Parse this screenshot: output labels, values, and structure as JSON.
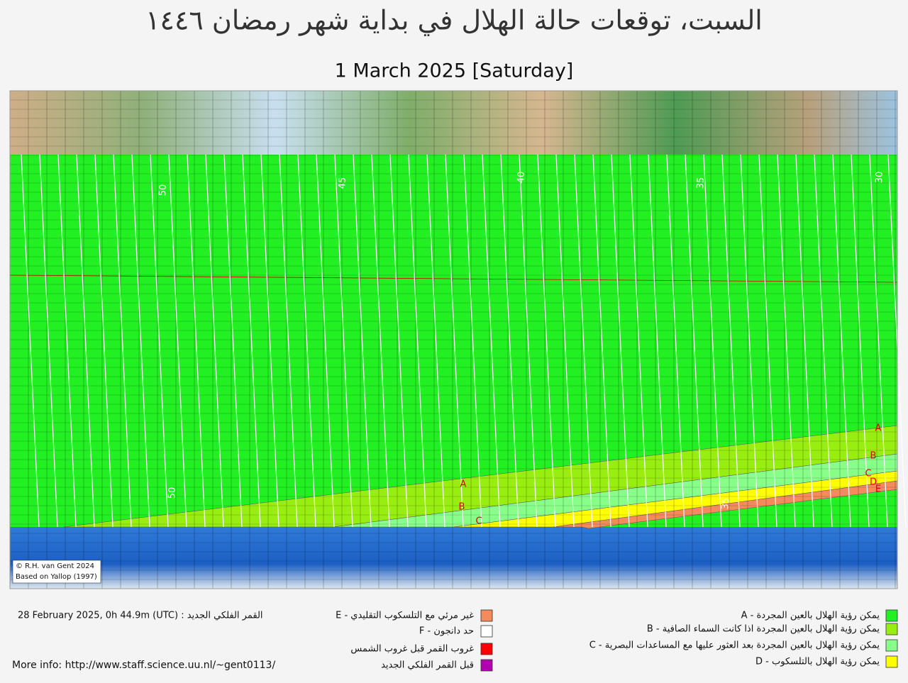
{
  "header": {
    "title": "السبت، توقعات حالة الهلال في بداية شهر رمضان ١٤٤٦",
    "subtitle": "1 March 2025 [Saturday]"
  },
  "map": {
    "contour_labels": [
      50,
      45,
      40,
      35,
      30,
      50,
      35
    ],
    "zone_letters": [
      "A",
      "B",
      "C",
      "A",
      "B",
      "C",
      "D",
      "E"
    ],
    "credit": [
      "© R.H. van Gent 2024",
      "Based on Yallop (1997)"
    ]
  },
  "legend": {
    "left": [
      {
        "label": "E - غير مرئي مع التلسكوب التقليدي",
        "color": "#f58a5c"
      },
      {
        "label": "F - حد دانجون",
        "color": "#ffffff"
      },
      {
        "label": "غروب القمر قبل غروب الشمس",
        "color": "#ff0000"
      },
      {
        "label": "قبل القمر الفلكي الجديد",
        "color": "#b000b0"
      }
    ],
    "right": [
      {
        "label": "A - يمكن رؤية الهلال بالعين المجردة",
        "color": "#22f022"
      },
      {
        "label": "B - يمكن رؤية الهلال بالعين المجردة اذا كانت السماء الصافية",
        "color": "#99ee11"
      },
      {
        "label": "C - يمكن رؤية الهلال بالعين المجردة بعد العثور عليها مع المساعدات البصرية",
        "color": "#88ff88"
      },
      {
        "label": "D - يمكن رؤية الهلال بالتلسكوب",
        "color": "#ffff00"
      }
    ]
  },
  "footer": {
    "new_moon": "28 February 2025, 0h 44.9m (UTC) : القمر الفلكي الجديد",
    "more_info": "More info: http://www.staff.science.uu.nl/~gent0113/"
  }
}
